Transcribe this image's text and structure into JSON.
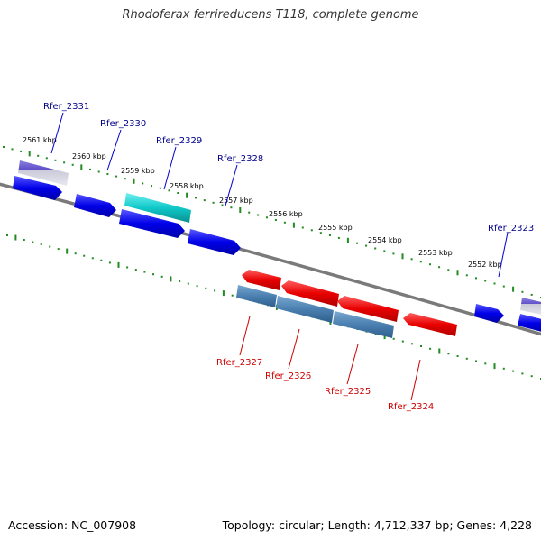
{
  "title": "Rhodoferax ferrireducens T118, complete genome",
  "footer": {
    "accession": "Accession: NC_007908",
    "summary": "Topology: circular; Length: 4,712,337 bp; Genes: 4,228"
  },
  "scale_labels": [
    "2561 kbp",
    "2560 kbp",
    "2559 kbp",
    "2558 kbp",
    "2557 kbp",
    "2556 kbp",
    "2555 kbp",
    "2554 kbp",
    "2553 kbp",
    "2552 kbp"
  ],
  "gene_labels_top": [
    "Rfer_2331",
    "Rfer_2330",
    "Rfer_2329",
    "Rfer_2328",
    "Rfer_2323"
  ],
  "gene_labels_bottom": [
    "Rfer_2327",
    "Rfer_2326",
    "Rfer_2325",
    "Rfer_2324"
  ],
  "colors": {
    "forward_gene": "#0000e0",
    "reverse_gene": "#e00000",
    "rna_gene": "#00c8c8",
    "pseudo_gene": "#7060d0",
    "cds_reverse": "#4a7fb0",
    "top_label": "#00008b",
    "bottom_label": "#cc0000",
    "ticks": "#1e8c1e",
    "backbone": "#7a7a7a"
  }
}
